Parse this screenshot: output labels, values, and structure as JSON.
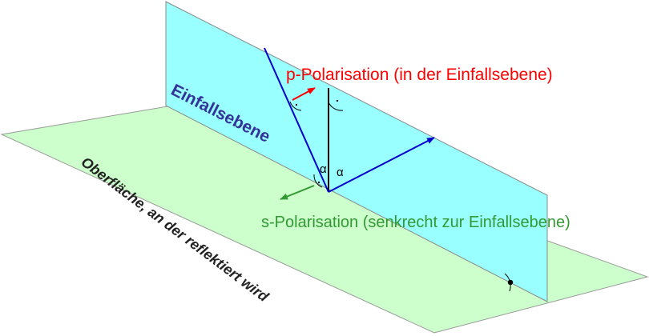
{
  "labels": {
    "p_polarisation": "p-Polarisation (in der Einfallsebene)",
    "s_polarisation": "s-Polarisation (senkrecht zur Einfallsebene)",
    "plane_of_incidence": "Einfallsebene",
    "reflecting_surface": "Oberfläche, an der reflektiert wird",
    "angle_incident": "α",
    "angle_reflected": "α",
    "right_angle_mark": "."
  },
  "colors": {
    "surface_fill": "#ccffcc",
    "incidence_plane_fill": "#99ffff",
    "beam_blue": "#0000cc",
    "p_red": "#ff0000",
    "s_green": "#339933",
    "plane_label": "#333399",
    "line_black": "#000000"
  }
}
